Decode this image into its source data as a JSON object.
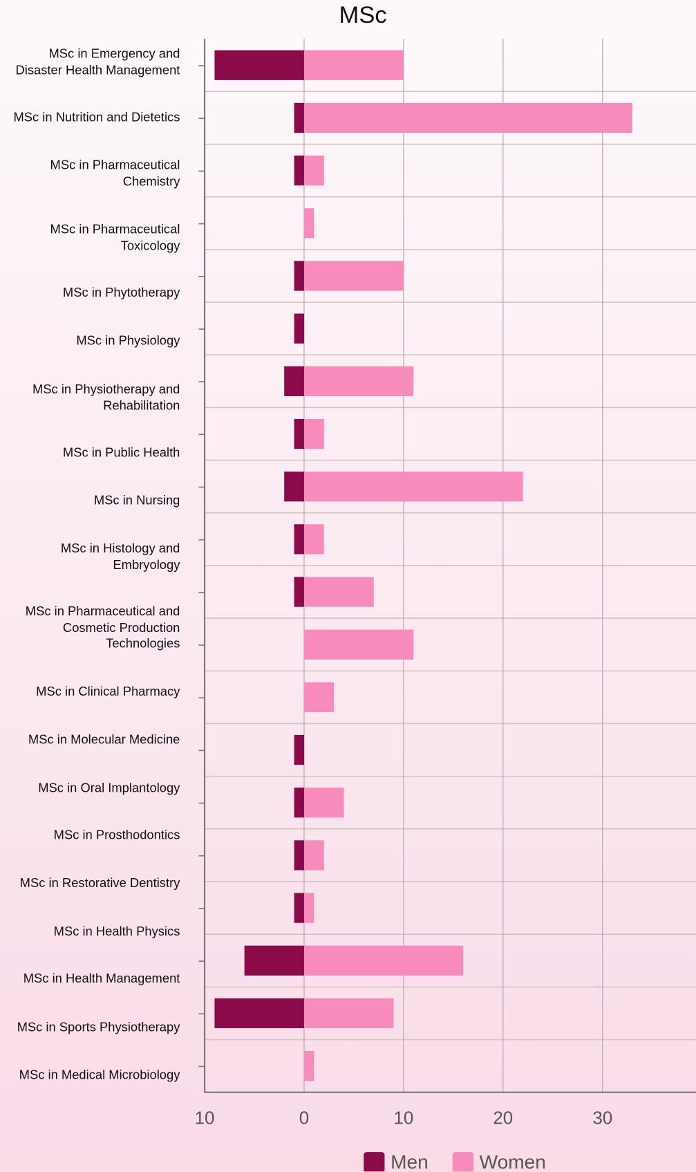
{
  "chart_data": {
    "type": "bar",
    "orientation": "horizontal",
    "title": "MSc",
    "categories": [
      "MSc in Emergency and\nDisaster Health Management",
      "MSc in Nutrition and Dietetics",
      "MSc in Pharmaceutical\nChemistry",
      "MSc in Pharmaceutical\nToxicology",
      "MSc in Phytotherapy",
      "MSc in Physiology",
      "MSc in Physiotherapy and\nRehabilitation",
      "MSc in Public Health",
      "MSc in Nursing",
      "MSc in Histology and\nEmbryology",
      "MSc in Pharmaceutical and\nCosmetic Production\nTechnologies",
      "MSc in Clinical Pharmacy",
      "MSc in Molecular Medicine",
      "MSc in Oral Implantology",
      "MSc in Prosthodontics",
      "MSc in Restorative Dentistry",
      "MSc in Health Physics",
      "MSc in Health Management",
      "MSc in Sports Physiotherapy",
      "MSc in Medical Microbiology"
    ],
    "series": [
      {
        "name": "Men",
        "color": "#8b0a4a",
        "values": [
          -9,
          -1,
          -1,
          0,
          -1,
          -1,
          -2,
          -1,
          -2,
          -1,
          -1,
          0,
          0,
          -1,
          -1,
          -1,
          -1,
          -6,
          -9,
          0
        ]
      },
      {
        "name": "Women",
        "color": "#f78bbb",
        "values": [
          10,
          33,
          2,
          1,
          10,
          0,
          11,
          2,
          22,
          2,
          7,
          11,
          3,
          0,
          4,
          2,
          1,
          16,
          9,
          1
        ]
      }
    ],
    "xlim": [
      -10,
      39.4
    ],
    "xticks": [
      {
        "value": -10,
        "label": "10"
      },
      0,
      10,
      20,
      30
    ],
    "grid": true,
    "legend": "bottom"
  }
}
